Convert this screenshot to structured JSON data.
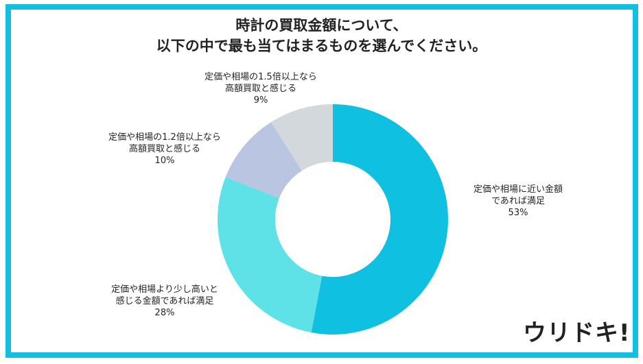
{
  "chart_data": {
    "type": "pie",
    "donut": true,
    "title_lines": [
      "時計の買取金額について、",
      "以下の中で最も当てはまるものを選んでください。"
    ],
    "slices": [
      {
        "label_lines": [
          "定価や相場に近い金額",
          "であれば満足"
        ],
        "value": 53,
        "value_label": "53%",
        "color": "#0fc0e0"
      },
      {
        "label_lines": [
          "定価や相場より少し高いと",
          "感じる金額であれば満足"
        ],
        "value": 28,
        "value_label": "28%",
        "color": "#5ee2e8"
      },
      {
        "label_lines": [
          "定価や相場の1.2倍以上なら",
          "高額買取と感じる"
        ],
        "value": 10,
        "value_label": "10%",
        "color": "#b9c5e1"
      },
      {
        "label_lines": [
          "定価や相場の1.5倍以上なら",
          "高額買取と感じる"
        ],
        "value": 9,
        "value_label": "9%",
        "color": "#d2d8dc"
      }
    ]
  },
  "logo": {
    "text": "ウリドキ",
    "mark": "!"
  }
}
